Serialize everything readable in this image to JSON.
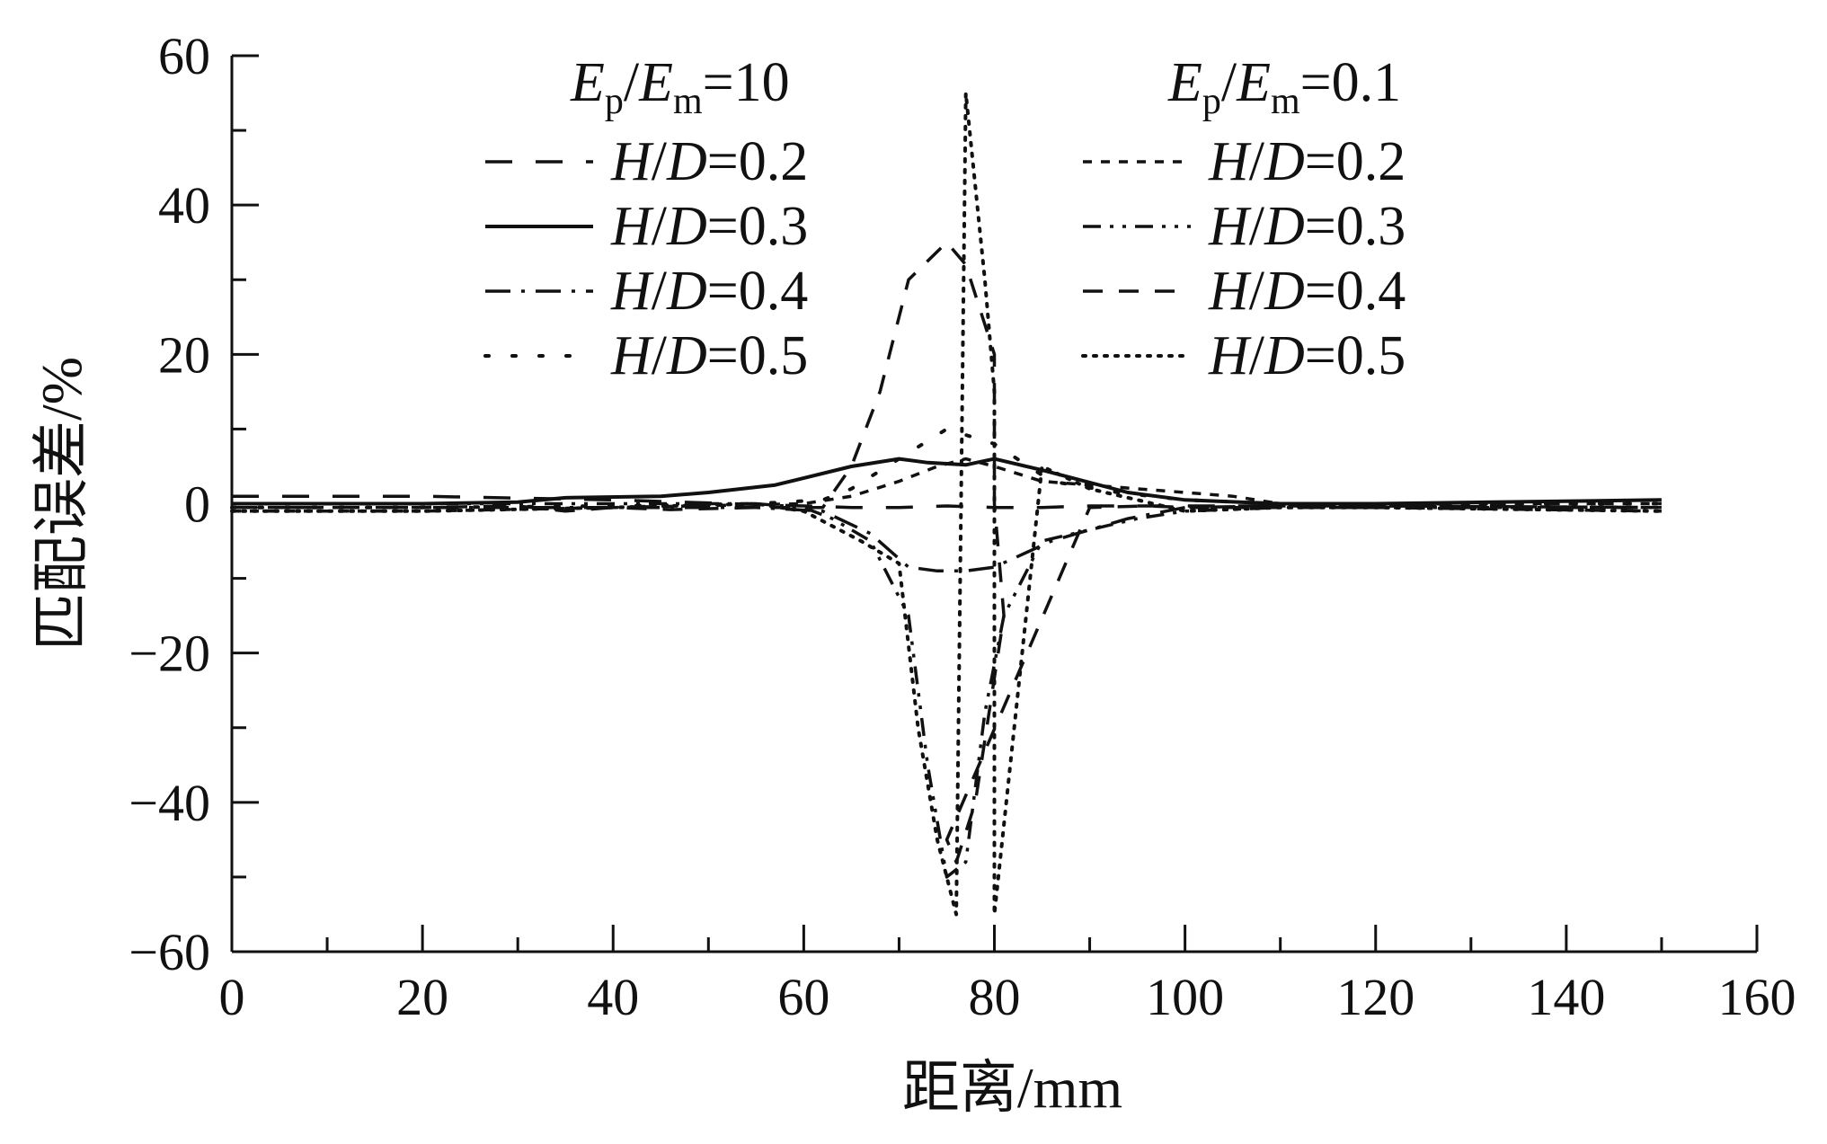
{
  "chart_data": {
    "type": "line",
    "xlabel": "距离/mm",
    "ylabel": "匹配误差/%",
    "xlim": [
      0,
      160
    ],
    "ylim": [
      -60,
      60
    ],
    "xticks": [
      "0",
      "20",
      "40",
      "60",
      "80",
      "100",
      "120",
      "140",
      "160"
    ],
    "yticks": [
      "−60",
      "−40",
      "−20",
      "0",
      "20",
      "40",
      "60"
    ],
    "grid": false,
    "legend_placement": "top",
    "legend_groups": [
      {
        "header": {
          "E": "E",
          "p": "p",
          "slash": "/",
          "E2": "E",
          "m": "m",
          "val": "=10"
        },
        "entries": [
          {
            "name": "H/D=0.2",
            "H": "H",
            "slash": "/",
            "D": "D",
            "val": "=0.2",
            "dash": "long-dash"
          },
          {
            "name": "H/D=0.3",
            "H": "H",
            "slash": "/",
            "D": "D",
            "val": "=0.3",
            "dash": "solid"
          },
          {
            "name": "H/D=0.4",
            "H": "H",
            "slash": "/",
            "D": "D",
            "val": "=0.4",
            "dash": "dash-dot"
          },
          {
            "name": "H/D=0.5",
            "H": "H",
            "slash": "/",
            "D": "D",
            "val": "=0.5",
            "dash": "sparse-dot"
          }
        ]
      },
      {
        "header": {
          "E": "E",
          "p": "p",
          "slash": "/",
          "E2": "E",
          "m": "m",
          "val": "=0.1"
        },
        "entries": [
          {
            "name": "H/D=0.2",
            "H": "H",
            "slash": "/",
            "D": "D",
            "val": "=0.2",
            "dash": "short-dash"
          },
          {
            "name": "H/D=0.3",
            "H": "H",
            "slash": "/",
            "D": "D",
            "val": "=0.3",
            "dash": "dash-dot-dot"
          },
          {
            "name": "H/D=0.4",
            "H": "H",
            "slash": "/",
            "D": "D",
            "val": "=0.4",
            "dash": "medium-dash"
          },
          {
            "name": "H/D=0.5",
            "H": "H",
            "slash": "/",
            "D": "D",
            "val": "=0.5",
            "dash": "dense-dot"
          }
        ]
      }
    ],
    "series": [
      {
        "group": "Ep/Em=10",
        "name": "H/D=0.2",
        "dash": "long-dash",
        "x": [
          0,
          20,
          40,
          60,
          65,
          70,
          75,
          80,
          85,
          90,
          100,
          120,
          150
        ],
        "y": [
          1,
          1,
          0.5,
          -0.3,
          -0.5,
          -0.5,
          -0.3,
          -0.5,
          -0.5,
          -0.3,
          -0.3,
          -0.3,
          -0.5
        ]
      },
      {
        "group": "Ep/Em=10",
        "name": "H/D=0.3",
        "dash": "solid",
        "x": [
          0,
          20,
          30,
          35,
          45,
          50,
          57,
          65,
          70,
          73,
          77,
          80,
          85,
          94,
          100,
          110,
          120,
          150
        ],
        "y": [
          0,
          0,
          0.2,
          0.8,
          1,
          1.5,
          2.5,
          5,
          6,
          5.5,
          5.2,
          6,
          4.5,
          1.5,
          0.5,
          0,
          0,
          0.5
        ]
      },
      {
        "group": "Ep/Em=10",
        "name": "H/D=0.4",
        "dash": "dash-dot",
        "x": [
          0,
          20,
          40,
          55,
          62,
          67,
          71,
          74,
          77,
          80,
          86,
          94,
          100,
          110,
          120,
          150
        ],
        "y": [
          -0.5,
          -0.5,
          -0.5,
          -0.5,
          -1,
          -4,
          -8.5,
          -9,
          -9,
          -8.5,
          -5,
          -2,
          -0.5,
          -0.3,
          -0.3,
          -0.5
        ]
      },
      {
        "group": "Ep/Em=10",
        "name": "H/D=0.5",
        "dash": "sparse-dot",
        "x": [
          0,
          20,
          40,
          55,
          62,
          65,
          70,
          75,
          80,
          86,
          93,
          100,
          110,
          120,
          150
        ],
        "y": [
          -0.5,
          -0.5,
          -0.3,
          0,
          0.5,
          2,
          6,
          10,
          8,
          3,
          1.5,
          0.5,
          0,
          0,
          0
        ]
      },
      {
        "group": "Ep/Em=0.1",
        "name": "H/D=0.2",
        "dash": "short-dash",
        "x": [
          0,
          20,
          40,
          60,
          65,
          70,
          74,
          77,
          80,
          85,
          95,
          100,
          105,
          110,
          120,
          150
        ],
        "y": [
          -1,
          -1,
          -0.5,
          0,
          1,
          3,
          5,
          6,
          5,
          3,
          2,
          1.5,
          1,
          0,
          0,
          0
        ]
      },
      {
        "group": "Ep/Em=0.1",
        "name": "H/D=0.3",
        "dash": "dash-dot-dot",
        "x": [
          0,
          20,
          40,
          55,
          60,
          63,
          67,
          71,
          73,
          75,
          77,
          79,
          81,
          85,
          95,
          100,
          110,
          120,
          150
        ],
        "y": [
          0,
          0,
          0,
          0,
          -0.5,
          -2,
          -5,
          -15,
          -35,
          -50,
          -48,
          -28,
          -15,
          -5,
          -2,
          -1,
          -0.5,
          -0.5,
          -0.5
        ]
      },
      {
        "group": "Ep/Em=0.1",
        "name": "H/D=0.4",
        "dash": "medium-dash",
        "x": [
          0,
          20,
          30,
          35,
          40,
          46,
          55,
          62,
          65,
          68,
          71,
          75,
          77,
          80,
          80,
          81,
          78,
          76,
          75,
          90,
          96,
          100,
          110,
          120,
          150
        ],
        "y": [
          -0.5,
          -0.5,
          -0.3,
          -1,
          -0.5,
          -0.8,
          -0.5,
          -0.5,
          5,
          15,
          30,
          35,
          32,
          20,
          0,
          -15,
          -40,
          -48,
          -45,
          -0.5,
          -0.3,
          -0.5,
          -0.5,
          -0.5,
          -1
        ]
      },
      {
        "group": "Ep/Em=0.1",
        "name": "H/D=0.5",
        "dash": "dense-dot",
        "x": [
          0,
          20,
          40,
          55,
          60,
          63,
          66,
          70,
          72,
          74,
          76,
          77,
          79,
          80,
          80,
          85,
          90,
          95,
          100,
          110,
          120,
          150
        ],
        "y": [
          -1,
          -1,
          -0.5,
          0,
          -1,
          -3,
          -5,
          -8,
          -30,
          -45,
          -55,
          55,
          30,
          15,
          -55,
          5,
          2,
          0.5,
          -1,
          -0.5,
          -0.5,
          -1
        ]
      }
    ]
  }
}
